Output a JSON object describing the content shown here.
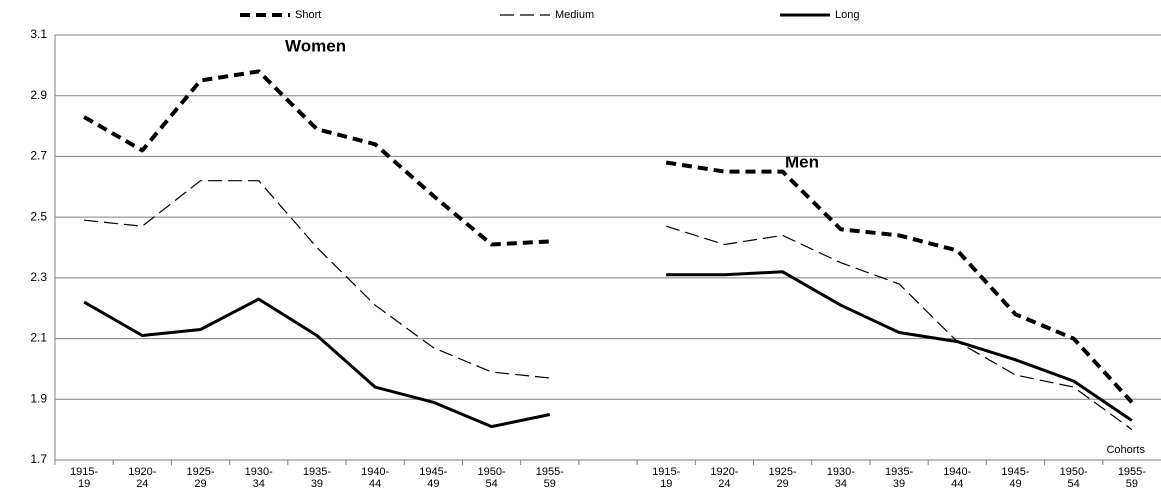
{
  "chart_data": {
    "type": "line",
    "categories": [
      "1915-\n19",
      "1920-\n24",
      "1925-\n29",
      "1930-\n34",
      "1935-\n39",
      "1940-\n44",
      "1945-\n49",
      "1950-\n54",
      "1955-\n59",
      null,
      "1915-\n19",
      "1920-\n24",
      "1925-\n29",
      "1930-\n34",
      "1935-\n39",
      "1940-\n44",
      "1945-\n49",
      "1950-\n54",
      "1955-\n59"
    ],
    "series": [
      {
        "name": "Short",
        "color": "#000000",
        "values": [
          2.83,
          2.72,
          2.95,
          2.98,
          2.79,
          2.74,
          2.57,
          2.41,
          2.42,
          null,
          2.68,
          2.65,
          2.65,
          2.46,
          2.44,
          2.39,
          2.18,
          2.1,
          1.89
        ]
      },
      {
        "name": "Medium",
        "color": "#000000",
        "values": [
          2.49,
          2.47,
          2.62,
          2.62,
          2.4,
          2.21,
          2.07,
          1.99,
          1.97,
          null,
          2.47,
          2.41,
          2.44,
          2.35,
          2.28,
          2.09,
          1.98,
          1.94,
          1.8
        ]
      },
      {
        "name": "Long",
        "color": "#000000",
        "values": [
          2.22,
          2.11,
          2.13,
          2.23,
          2.11,
          1.94,
          1.89,
          1.81,
          1.85,
          null,
          2.31,
          2.31,
          2.32,
          2.21,
          2.12,
          2.09,
          2.03,
          1.96,
          1.83
        ]
      }
    ],
    "annotations": [
      "Women",
      "Men",
      "Cohorts"
    ],
    "ylim": [
      1.7,
      3.1
    ],
    "yticks": [
      1.7,
      1.9,
      2.1,
      2.3,
      2.5,
      2.7,
      2.9,
      3.1
    ],
    "grid": true,
    "legend": "top"
  }
}
